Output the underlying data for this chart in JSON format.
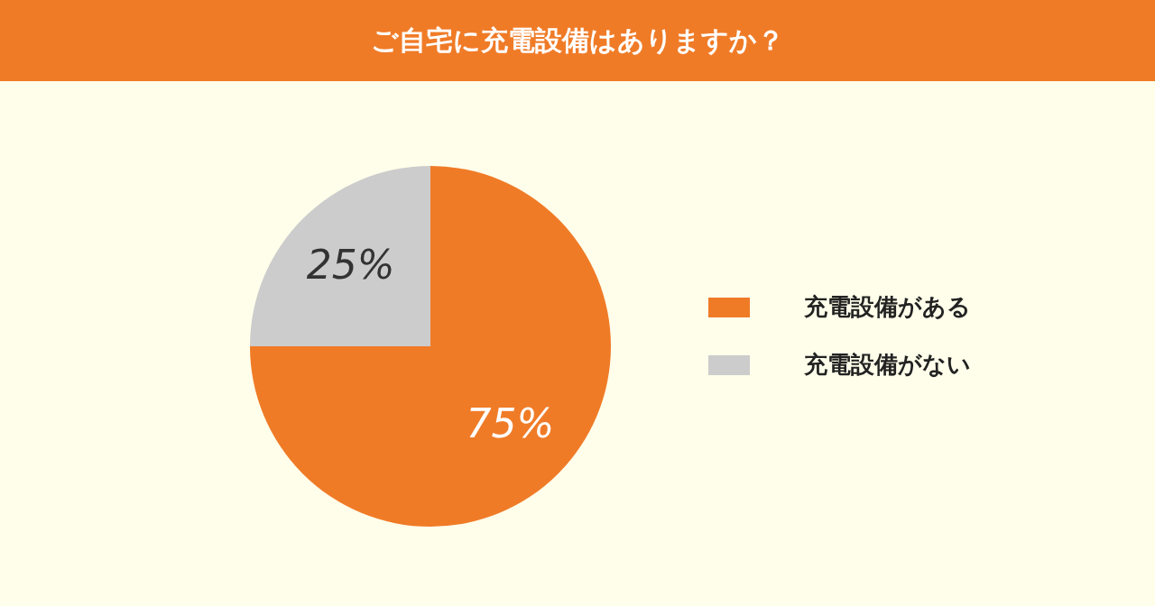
{
  "chart_data": {
    "type": "pie",
    "title": "ご自宅に充電設備はありますか？",
    "categories": [
      "充電設備がある",
      "充電設備がない"
    ],
    "values": [
      75,
      25
    ],
    "colors": [
      "#f07b27",
      "#cccccc"
    ],
    "value_labels": [
      "75%",
      "25%"
    ],
    "legend": "right"
  }
}
